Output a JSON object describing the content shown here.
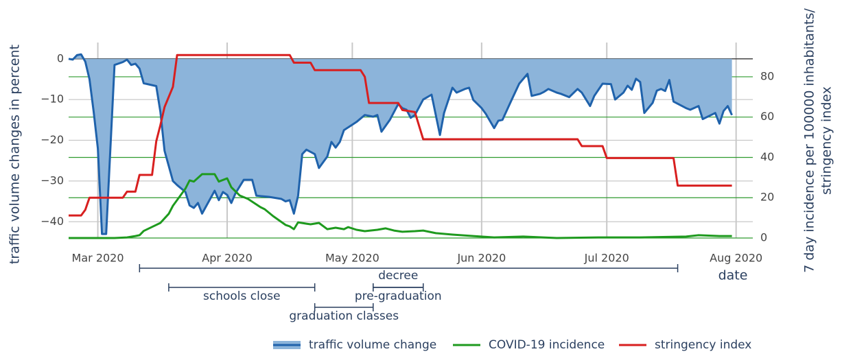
{
  "chart_data": {
    "type": "line",
    "xlabel": "date",
    "ylabel": "traffic volume changes in percent",
    "y2label": [
      "7 day incidence per 100000 inhabitants/",
      "stringency index"
    ],
    "xlim": [
      "2020-02-23",
      "2020-08-05"
    ],
    "xticks": [
      {
        "value": "2020-03-01",
        "label": "Mar 2020"
      },
      {
        "value": "2020-04-01",
        "label": "Apr 2020"
      },
      {
        "value": "2020-05-01",
        "label": "May 2020"
      },
      {
        "value": "2020-06-01",
        "label": "Jun 2020"
      },
      {
        "value": "2020-07-01",
        "label": "Jul 2020"
      },
      {
        "value": "2020-08-01",
        "label": "Aug 2020"
      }
    ],
    "ylim": [
      -44,
      4
    ],
    "yticks": [
      {
        "value": -40,
        "label": "−40"
      },
      {
        "value": -30,
        "label": "−30"
      },
      {
        "value": -20,
        "label": "−20"
      },
      {
        "value": -10,
        "label": "−10"
      },
      0
    ],
    "y2lim": [
      0,
      97
    ],
    "y2ticks": [
      0,
      20,
      40,
      60,
      80
    ],
    "grid": true,
    "legend": "bottom",
    "series": [
      {
        "name": "traffic volume change",
        "color": "#1f62ab",
        "fill_color": "#8cb4da",
        "axis": "y",
        "x": [
          "2020-02-23",
          "2020-02-24",
          "2020-02-25",
          "2020-02-26",
          "2020-02-27",
          "2020-02-28",
          "2020-02-29",
          "2020-03-01",
          "2020-03-02",
          "2020-03-03",
          "2020-03-05",
          "2020-03-07",
          "2020-03-08",
          "2020-03-09",
          "2020-03-10",
          "2020-03-11",
          "2020-03-12",
          "2020-03-15",
          "2020-03-16",
          "2020-03-17",
          "2020-03-19",
          "2020-03-20",
          "2020-03-22",
          "2020-03-23",
          "2020-03-24",
          "2020-03-25",
          "2020-03-26",
          "2020-03-29",
          "2020-03-30",
          "2020-03-31",
          "2020-04-01",
          "2020-04-02",
          "2020-04-03",
          "2020-04-05",
          "2020-04-07",
          "2020-04-08",
          "2020-04-11",
          "2020-04-14",
          "2020-04-15",
          "2020-04-16",
          "2020-04-17",
          "2020-04-18",
          "2020-04-19",
          "2020-04-20",
          "2020-04-22",
          "2020-04-23",
          "2020-04-25",
          "2020-04-26",
          "2020-04-27",
          "2020-04-28",
          "2020-04-29",
          "2020-05-02",
          "2020-05-04",
          "2020-05-06",
          "2020-05-07",
          "2020-05-08",
          "2020-05-10",
          "2020-05-12",
          "2020-05-13",
          "2020-05-14",
          "2020-05-15",
          "2020-05-16",
          "2020-05-18",
          "2020-05-20",
          "2020-05-22",
          "2020-05-23",
          "2020-05-25",
          "2020-05-26",
          "2020-05-28",
          "2020-05-29",
          "2020-05-30",
          "2020-06-01",
          "2020-06-02",
          "2020-06-04",
          "2020-06-05",
          "2020-06-06",
          "2020-06-08",
          "2020-06-10",
          "2020-06-12",
          "2020-06-13",
          "2020-06-15",
          "2020-06-16",
          "2020-06-17",
          "2020-06-19",
          "2020-06-20",
          "2020-06-22",
          "2020-06-24",
          "2020-06-25",
          "2020-06-27",
          "2020-06-28",
          "2020-06-30",
          "2020-07-02",
          "2020-07-03",
          "2020-07-05",
          "2020-07-06",
          "2020-07-07",
          "2020-07-08",
          "2020-07-09",
          "2020-07-10",
          "2020-07-12",
          "2020-07-13",
          "2020-07-14",
          "2020-07-15",
          "2020-07-16",
          "2020-07-17",
          "2020-07-20",
          "2020-07-21",
          "2020-07-23",
          "2020-07-24",
          "2020-07-26",
          "2020-07-27",
          "2020-07-28",
          "2020-07-29",
          "2020-07-30",
          "2020-07-31"
        ],
        "values": [
          0,
          -0.2,
          0.9,
          1.1,
          -0.7,
          -5,
          -13,
          -22,
          -43,
          -43,
          -1.5,
          -0.8,
          -0.2,
          -1.5,
          -1.2,
          -2.4,
          -6,
          -6.7,
          -13,
          -22.6,
          -30,
          -31,
          -32.7,
          -36,
          -36.6,
          -35.4,
          -38,
          -32.4,
          -34.7,
          -32.7,
          -33.4,
          -35.4,
          -33,
          -29.7,
          -29.7,
          -33.6,
          -33.9,
          -34.4,
          -35,
          -34.7,
          -38,
          -33.6,
          -23.4,
          -22.3,
          -23.4,
          -26.8,
          -24,
          -20.4,
          -21.8,
          -20.4,
          -17.5,
          -15.5,
          -13.8,
          -14.2,
          -13.8,
          -17.9,
          -15,
          -11.1,
          -12.1,
          -12.5,
          -14.5,
          -13.8,
          -10,
          -8.8,
          -18.7,
          -13.3,
          -7.1,
          -8.3,
          -7.4,
          -7.1,
          -10.1,
          -12.1,
          -13.5,
          -17,
          -15.2,
          -15,
          -10.5,
          -6.1,
          -3.7,
          -9.1,
          -8.6,
          -8.1,
          -7.4,
          -8.3,
          -8.6,
          -9.4,
          -7.4,
          -8.3,
          -11.6,
          -9.1,
          -6.1,
          -6.2,
          -10,
          -8.3,
          -6.6,
          -7.6,
          -4.9,
          -5.7,
          -13.3,
          -10.8,
          -7.8,
          -7.4,
          -7.9,
          -5.2,
          -10.5,
          -12.1,
          -12.5,
          -11.6,
          -14.8,
          -13.8,
          -13.3,
          -15.9,
          -12.8,
          -11.6,
          -13.8
        ]
      },
      {
        "name": "COVID-19 incidence",
        "color": "#1e9a1e",
        "axis": "y2",
        "x": [
          "2020-02-23",
          "2020-03-05",
          "2020-03-08",
          "2020-03-10",
          "2020-03-11",
          "2020-03-12",
          "2020-03-14",
          "2020-03-16",
          "2020-03-18",
          "2020-03-19",
          "2020-03-22",
          "2020-03-23",
          "2020-03-24",
          "2020-03-26",
          "2020-03-29",
          "2020-03-30",
          "2020-04-01",
          "2020-04-02",
          "2020-04-04",
          "2020-04-06",
          "2020-04-09",
          "2020-04-10",
          "2020-04-12",
          "2020-04-15",
          "2020-04-16",
          "2020-04-17",
          "2020-04-18",
          "2020-04-20",
          "2020-04-21",
          "2020-04-23",
          "2020-04-25",
          "2020-04-27",
          "2020-04-29",
          "2020-04-30",
          "2020-05-02",
          "2020-05-04",
          "2020-05-07",
          "2020-05-09",
          "2020-05-11",
          "2020-05-13",
          "2020-05-16",
          "2020-05-18",
          "2020-05-21",
          "2020-05-25",
          "2020-05-30",
          "2020-06-04",
          "2020-06-11",
          "2020-06-19",
          "2020-06-29",
          "2020-07-09",
          "2020-07-20",
          "2020-07-23",
          "2020-07-28",
          "2020-07-31"
        ],
        "values": [
          0,
          0,
          0.3,
          1,
          1.4,
          3.5,
          5.5,
          7.5,
          12,
          16,
          24.5,
          28.6,
          28,
          31.7,
          31.7,
          28,
          29.6,
          25.2,
          21.1,
          19.4,
          15.3,
          14.3,
          10.9,
          6.5,
          5.8,
          4.4,
          7.8,
          7.1,
          6.8,
          7.5,
          4.4,
          5.1,
          4.4,
          5.4,
          4.1,
          3.4,
          4.1,
          4.8,
          3.7,
          3.1,
          3.4,
          3.7,
          2.4,
          1.7,
          1,
          0.3,
          0.7,
          0,
          0.3,
          0.3,
          0.7,
          1.4,
          1,
          1
        ]
      },
      {
        "name": "stringency index",
        "color": "#d81f1f",
        "axis": "y2",
        "x": [
          "2020-02-23",
          "2020-02-26",
          "2020-02-27",
          "2020-02-28",
          "2020-03-07",
          "2020-03-08",
          "2020-03-10",
          "2020-03-11",
          "2020-03-14",
          "2020-03-15",
          "2020-03-16",
          "2020-03-17",
          "2020-03-19",
          "2020-03-20",
          "2020-04-16",
          "2020-04-17",
          "2020-04-21",
          "2020-04-22",
          "2020-05-03",
          "2020-05-04",
          "2020-05-05",
          "2020-05-12",
          "2020-05-13",
          "2020-05-16",
          "2020-05-18",
          "2020-06-24",
          "2020-06-25",
          "2020-06-30",
          "2020-07-01",
          "2020-07-17",
          "2020-07-18",
          "2020-07-31"
        ],
        "values": [
          11.2,
          11.2,
          14,
          20,
          20,
          23,
          23,
          31.3,
          31.3,
          48,
          56,
          65,
          75,
          90.8,
          90.8,
          87,
          87,
          83.3,
          83.3,
          80,
          67,
          67,
          63.5,
          62.5,
          49,
          49,
          45.6,
          45.6,
          39.7,
          39.7,
          26,
          26
        ]
      }
    ],
    "annotations": [
      {
        "start": "2020-03-11",
        "end": "2020-07-18"
      },
      {
        "label": "schools close",
        "start": "2020-03-18",
        "end": "2020-04-22"
      },
      {
        "label": "decree",
        "start": "2020-05-06",
        "end": "2020-05-18"
      },
      {
        "label": "pre-graduation",
        "start": "2020-05-06",
        "end": "2020-05-18"
      },
      {
        "label": "graduation classes",
        "start": "2020-04-22",
        "end": "2020-05-06"
      }
    ]
  }
}
